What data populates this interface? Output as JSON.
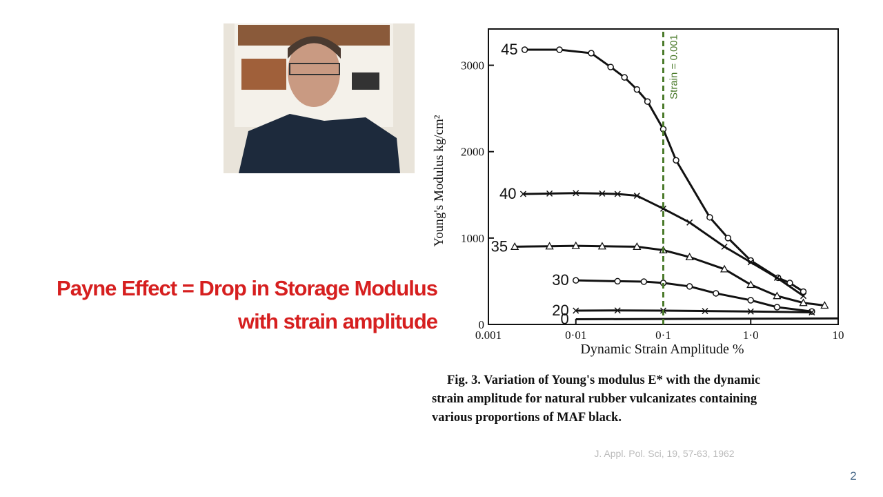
{
  "slide": {
    "title_lines": [
      "Payne Effect = Drop in Storage Modulus",
      "with strain amplitude"
    ],
    "caption_lines": [
      "Fig. 3.  Variation of Young's modulus E* with the dynamic",
      "strain amplitude for natural rubber vulcanizates containing",
      "various proportions of MAF black."
    ],
    "citation": "J. Appl. Pol. Sci, 19, 57-63, 1962",
    "page_number": "2"
  },
  "chart_data": {
    "type": "line",
    "x_label": "Dynamic Strain Amplitude %",
    "y_label": "Young's Modulus kg/cm²",
    "xscale": "log",
    "xlim": [
      0.001,
      10
    ],
    "ylim": [
      0,
      3420
    ],
    "xticks": [
      {
        "value": 0.001,
        "label": "0.001"
      },
      {
        "value": 0.01,
        "label": "0·01"
      },
      {
        "value": 0.1,
        "label": "0·1"
      },
      {
        "value": 1,
        "label": "1·0"
      },
      10
    ],
    "yticks": [
      0,
      1000,
      2000,
      3000
    ],
    "color": "#111111",
    "series": [
      {
        "name": "45",
        "marker": "circle",
        "x": [
          0.0026,
          0.0065,
          0.015,
          0.025,
          0.036,
          0.05,
          0.066,
          0.1,
          0.14,
          0.34,
          0.55,
          1.0,
          2.05,
          2.8,
          4
        ],
        "values": [
          3180,
          3180,
          3140,
          2980,
          2860,
          2720,
          2580,
          2260,
          1900,
          1240,
          1000,
          740,
          540,
          480,
          380
        ]
      },
      {
        "name": "40",
        "marker": "cross",
        "x": [
          0.0025,
          0.005,
          0.01,
          0.02,
          0.03,
          0.05,
          0.1,
          0.2,
          0.5,
          1,
          2,
          4
        ],
        "values": [
          1510,
          1515,
          1520,
          1515,
          1510,
          1490,
          1340,
          1180,
          900,
          720,
          540,
          330
        ]
      },
      {
        "name": "35",
        "marker": "triangle",
        "x": [
          0.002,
          0.005,
          0.01,
          0.02,
          0.05,
          0.1,
          0.2,
          0.5,
          1,
          2,
          4,
          7
        ],
        "values": [
          900,
          905,
          910,
          905,
          900,
          860,
          780,
          640,
          460,
          330,
          250,
          220
        ]
      },
      {
        "name": "30",
        "marker": "circle",
        "x": [
          0.01,
          0.03,
          0.06,
          0.1,
          0.2,
          0.4,
          1,
          2,
          5
        ],
        "values": [
          510,
          500,
          495,
          480,
          440,
          360,
          280,
          200,
          150
        ]
      },
      {
        "name": "20",
        "marker": "cross",
        "x": [
          0.01,
          0.03,
          0.1,
          0.3,
          1,
          5
        ],
        "values": [
          160,
          162,
          160,
          155,
          150,
          140
        ]
      },
      {
        "name": "0",
        "marker": "none",
        "x": [
          0.01,
          10
        ],
        "values": [
          60,
          70
        ]
      }
    ],
    "annotation": {
      "text": "Strain = 0.001",
      "x": 0.1,
      "color": "#4a7a2a"
    }
  }
}
